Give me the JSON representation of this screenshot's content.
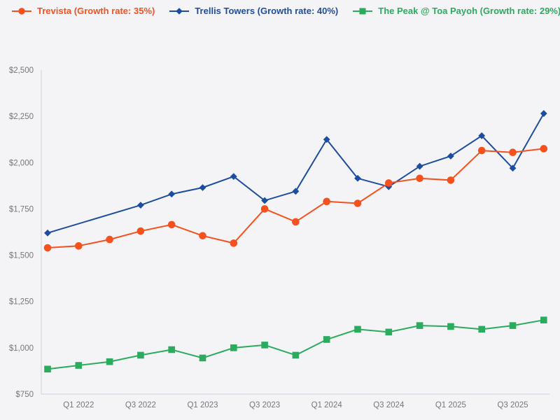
{
  "legend": {
    "items": [
      {
        "label": "Trevista (Growth rate: 35%)",
        "color": "#f4511e",
        "marker": "circle"
      },
      {
        "label": "Trellis Towers (Growth rate: 40%)",
        "color": "#1d4d9e",
        "marker": "diamond"
      },
      {
        "label": "The Peak @ Toa Payoh (Growth rate: 29%)",
        "color": "#2bab5d",
        "marker": "square"
      }
    ]
  },
  "chart_data": {
    "type": "line",
    "title": "",
    "xlabel": "",
    "ylabel": "",
    "grid": false,
    "legend_position": "top-left",
    "categories": [
      "Q4 2021",
      "Q1 2022",
      "Q2 2022",
      "Q3 2022",
      "Q4 2022",
      "Q1 2023",
      "Q2 2023",
      "Q3 2023",
      "Q4 2023",
      "Q1 2024",
      "Q2 2024",
      "Q3 2024",
      "Q4 2024",
      "Q1 2025",
      "Q2 2025",
      "Q3 2025",
      "Q4 2025"
    ],
    "x_tick_indices": [
      1,
      3,
      5,
      7,
      9,
      11,
      13,
      15
    ],
    "x_tick_labels": [
      "Q1 2022",
      "Q3 2022",
      "Q1 2023",
      "Q3 2023",
      "Q1 2024",
      "Q3 2024",
      "Q1 2025",
      "Q3 2025"
    ],
    "ylim": [
      750,
      2500
    ],
    "y_ticks": [
      750,
      1000,
      1250,
      1500,
      1750,
      2000,
      2250,
      2500
    ],
    "y_tick_labels": [
      "$750",
      "$1,000",
      "$1,250",
      "$1,500",
      "$1,750",
      "$2,000",
      "$2,250",
      "$2,500"
    ],
    "series": [
      {
        "name": "Trevista",
        "growth_rate": "35%",
        "color": "#f4511e",
        "marker": "circle",
        "values": [
          1540,
          1550,
          1585,
          1630,
          1665,
          1605,
          1565,
          1750,
          1680,
          1790,
          1780,
          1890,
          1915,
          1905,
          2065,
          2055,
          2075
        ]
      },
      {
        "name": "Trellis Towers",
        "growth_rate": "40%",
        "color": "#1d4d9e",
        "marker": "diamond",
        "values": [
          1620,
          null,
          null,
          1770,
          1830,
          1865,
          1925,
          1795,
          1845,
          2125,
          1915,
          1870,
          1980,
          2035,
          2145,
          1970,
          2265
        ]
      },
      {
        "name": "The Peak @ Toa Payoh",
        "growth_rate": "29%",
        "color": "#2bab5d",
        "marker": "square",
        "values": [
          885,
          905,
          925,
          960,
          990,
          945,
          1000,
          1015,
          960,
          1045,
          1100,
          1085,
          1120,
          1115,
          1100,
          1120,
          1150
        ]
      }
    ]
  },
  "colors": {
    "background": "#f4f4f6",
    "axis_line": "#c8d1e0",
    "tick_text": "#75757d"
  }
}
